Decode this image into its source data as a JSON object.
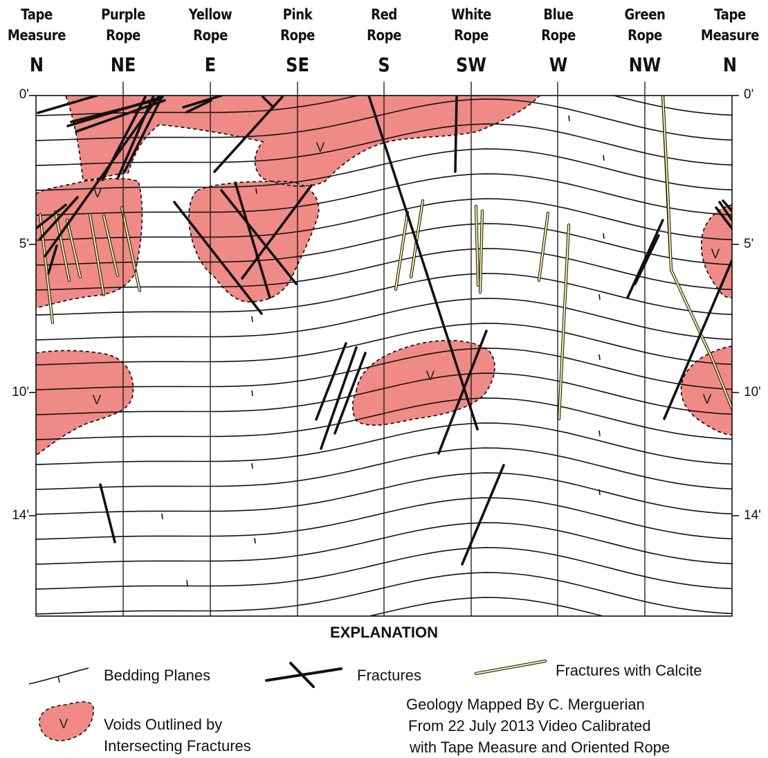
{
  "columns": [
    {
      "label": "Tape\nMeasure",
      "direction": "N"
    },
    {
      "label": "Purple\nRope",
      "direction": "NE"
    },
    {
      "label": "Yellow\nRope",
      "direction": "E"
    },
    {
      "label": "Pink\nRope",
      "direction": "SE"
    },
    {
      "label": "Red\nRope",
      "direction": "S"
    },
    {
      "label": "White\nRope",
      "direction": "SW"
    },
    {
      "label": "Blue\nRope",
      "direction": "W"
    },
    {
      "label": "Green\nRope",
      "direction": "NW"
    },
    {
      "label": "Tape\nMeasure",
      "direction": "N"
    }
  ],
  "depth_ticks": [
    "0'",
    "5'",
    "10'",
    "14'"
  ],
  "void_symbol": "V",
  "explanation": {
    "title": "EXPLANATION",
    "bedding_planes": "Bedding Planes",
    "fractures": "Fractures",
    "fractures_with_calcite": "Fractures with Calcite",
    "voids": "Voids Outlined by\nIntersecting Fractures",
    "credit_line1": "Geology Mapped By C. Merguerian",
    "credit_line2": "From 22 July 2013 Video Calibrated",
    "credit_line3": "with Tape Measure and Oriented Rope"
  },
  "colors": {
    "void_fill": "#f08a86",
    "calcite_fill": "#f3ec9a",
    "line": "#111111"
  }
}
